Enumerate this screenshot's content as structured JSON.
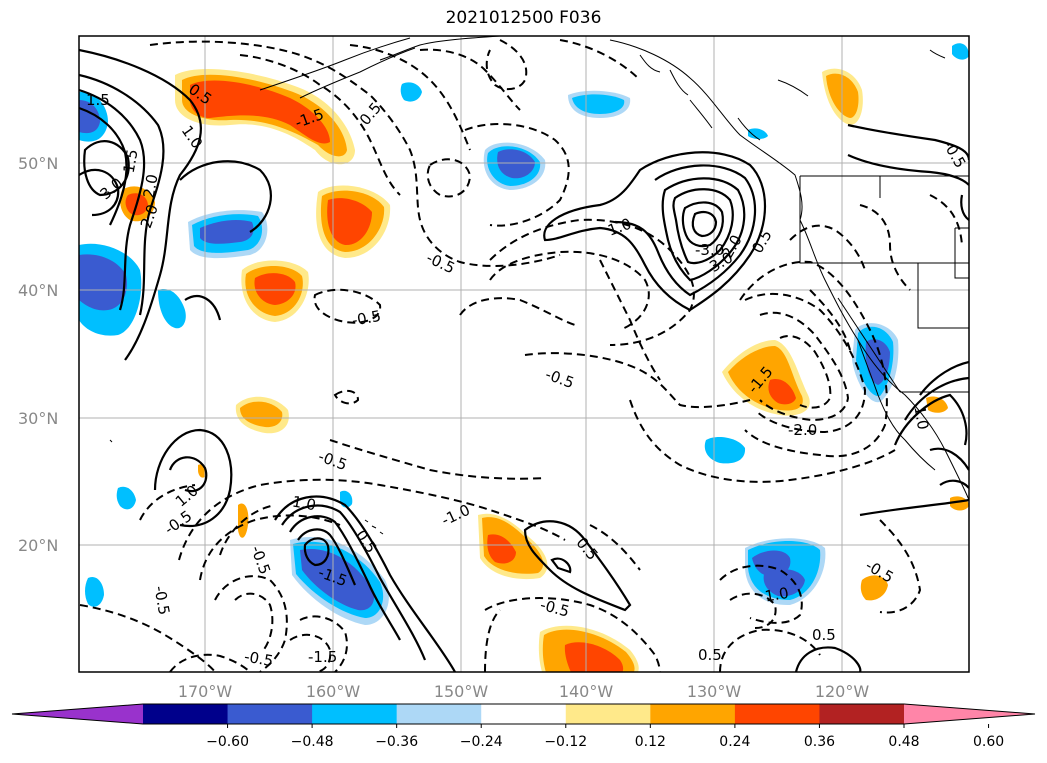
{
  "title": "2021012500 F036",
  "map": {
    "lat_labels": [
      "50°N",
      "40°N",
      "30°N",
      "20°N"
    ],
    "lon_labels": [
      "170°W",
      "160°W",
      "150°W",
      "140°W",
      "130°W",
      "120°W"
    ],
    "contour_labels": [
      "1.5",
      "0.5",
      "1.0",
      "2.0",
      "1.5",
      "3.0",
      "2.0",
      "-1.5",
      "0.5",
      "1.0",
      "-3.0",
      "3.0",
      "2.0",
      "0.5",
      "-0.5",
      "-0.5",
      "-0.5",
      "-1.5",
      "-2.0",
      "-0.5",
      "1.0",
      "-1.0",
      "-0.5",
      "1.0",
      "-1.5",
      "-0.5",
      "-0.5",
      "0.5",
      "-0.5",
      "-1.5",
      "-0.5",
      "0.5",
      "-0.5",
      "0.5",
      "1.0",
      "-0.5",
      "1.0",
      "0.5"
    ],
    "grid": true
  },
  "colorbar": {
    "ticks": [
      "−0.60",
      "−0.48",
      "−0.36",
      "−0.24",
      "−0.12",
      "0.12",
      "0.24",
      "0.36",
      "0.48",
      "0.60"
    ],
    "colors": [
      "#9932cc",
      "#00008b",
      "#3a5bd0",
      "#00bfff",
      "#add8f6",
      "#ffffff",
      "#ffe98a",
      "#ffa500",
      "#ff4500",
      "#b22222",
      "#ff85a8"
    ]
  }
}
